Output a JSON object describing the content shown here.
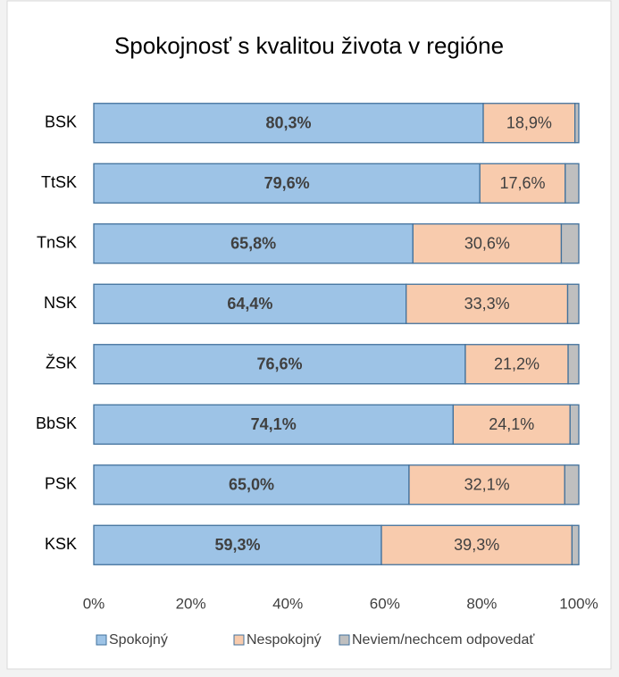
{
  "chart_data": {
    "type": "stacked-bar-horizontal",
    "title": "Spokojnosť s kvalitou života v regióne",
    "categories": [
      "BSK",
      "TtSK",
      "TnSK",
      "NSK",
      "ŽSK",
      "BbSK",
      "PSK",
      "KSK"
    ],
    "series": [
      {
        "name": "Spokojný",
        "color": "#9dc3e6",
        "values": [
          80.3,
          79.6,
          65.8,
          64.4,
          76.6,
          74.1,
          65.0,
          59.3
        ],
        "value_labels": [
          "80,3%",
          "79,6%",
          "65,8%",
          "64,4%",
          "76,6%",
          "74,1%",
          "65,0%",
          "59,3%"
        ]
      },
      {
        "name": "Nespokojný",
        "color": "#f8cbad",
        "values": [
          18.9,
          17.6,
          30.6,
          33.3,
          21.2,
          24.1,
          32.1,
          39.3
        ],
        "value_labels": [
          "18,9%",
          "17,6%",
          "30,6%",
          "33,3%",
          "21,2%",
          "24,1%",
          "32,1%",
          "39,3%"
        ]
      },
      {
        "name": "Neviem/nechcem odpovedať",
        "color": "#bfbfbf",
        "values": [
          0.8,
          2.8,
          3.6,
          2.3,
          2.2,
          1.8,
          2.9,
          1.4
        ]
      }
    ],
    "xlim": [
      0,
      100
    ],
    "xticks": [
      {
        "value": 0,
        "label": "0%"
      },
      {
        "value": 20,
        "label": "20%"
      },
      {
        "value": 40,
        "label": "40%"
      },
      {
        "value": 60,
        "label": "60%"
      },
      {
        "value": 80,
        "label": "80%"
      },
      {
        "value": 100,
        "label": "100%"
      }
    ],
    "legend": "bottom"
  }
}
